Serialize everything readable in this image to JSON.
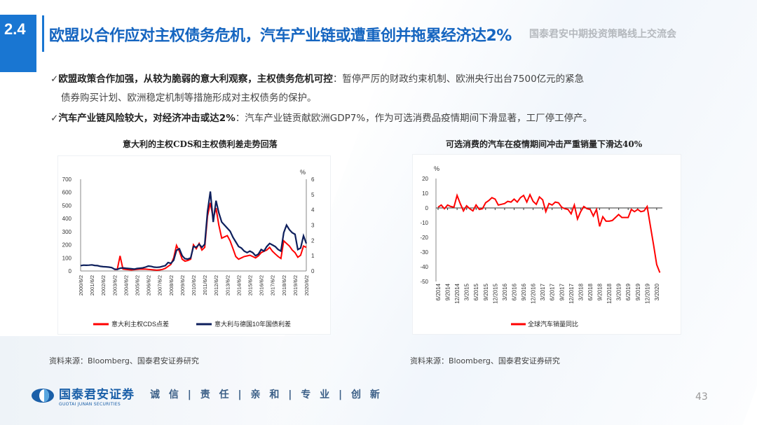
{
  "header": {
    "section": "2.4",
    "title": "欧盟以合作应对主权债务危机，汽车产业链或遭重创并拖累经济达2%",
    "event": "国泰君安中期投资策略线上交流会"
  },
  "bullets": [
    {
      "bold": "欧盟政策合作加强，从较为脆弱的意大利观察，主权债务危机可控",
      "text": "：暂停严厉的财政约束机制、欧洲央行出台7500亿元的紧急",
      "text2": "债券购买计划、欧洲稳定机制等措施形成对主权债务的保护。"
    },
    {
      "bold": "汽车产业链风险较大，对经济冲击或达2%",
      "text": "：汽车产业链贡献欧洲GDP7%，作为可选消费品疫情期间下滑显著，工厂停工停产。"
    }
  ],
  "footer": {
    "logo_cn": "国泰君安证券",
    "logo_en": "GUOTAI JUNAN SECURITIES",
    "motto": "诚 信 | 责 任 | 亲 和 | 专 业 | 创 新",
    "page": "43",
    "brand_color": "#1a5fa8"
  },
  "chart_data": [
    {
      "type": "line",
      "title": "意大利的主权CDS和主权债利差走势回落",
      "source": "资料来源：Bloomberg、国泰君安证券研究",
      "xtick_labels": [
        "2000/6/2",
        "2001/6/2",
        "2002/6/2",
        "2003/6/2",
        "2004/6/2",
        "2005/6/2",
        "2006/6/2",
        "2007/6/2",
        "2008/6/2",
        "2009/6/2",
        "2010/6/2",
        "2011/6/2",
        "2012/6/2",
        "2013/6/2",
        "2014/6/2",
        "2015/6/2",
        "2016/6/2",
        "2017/6/2",
        "2018/6/2",
        "2019/6/2",
        "2020/6/2"
      ],
      "x": [
        "2000-06",
        "2000-09",
        "2000-12",
        "2001-03",
        "2001-06",
        "2001-09",
        "2001-12",
        "2002-03",
        "2002-06",
        "2002-09",
        "2002-12",
        "2003-03",
        "2003-06",
        "2003-09",
        "2003-12",
        "2004-03",
        "2004-06",
        "2004-09",
        "2004-12",
        "2005-03",
        "2005-06",
        "2005-09",
        "2005-12",
        "2006-03",
        "2006-06",
        "2006-09",
        "2006-12",
        "2007-03",
        "2007-06",
        "2007-09",
        "2007-12",
        "2008-03",
        "2008-06",
        "2008-09",
        "2008-12",
        "2009-03",
        "2009-06",
        "2009-09",
        "2009-12",
        "2010-03",
        "2010-06",
        "2010-09",
        "2010-12",
        "2011-03",
        "2011-06",
        "2011-09",
        "2011-12",
        "2012-03",
        "2012-06",
        "2012-09",
        "2012-12",
        "2013-03",
        "2013-06",
        "2013-09",
        "2013-12",
        "2014-03",
        "2014-06",
        "2014-09",
        "2014-12",
        "2015-03",
        "2015-06",
        "2015-09",
        "2015-12",
        "2016-03",
        "2016-06",
        "2016-09",
        "2016-12",
        "2017-03",
        "2017-06",
        "2017-09",
        "2017-12",
        "2018-03",
        "2018-06",
        "2018-09",
        "2018-12",
        "2019-03",
        "2019-06",
        "2019-09",
        "2019-12",
        "2020-03",
        "2020-06"
      ],
      "yleft": {
        "ticks": [
          "0",
          "100",
          "200",
          "300",
          "400",
          "500",
          "600",
          "700"
        ],
        "range": [
          0,
          700
        ]
      },
      "yright": {
        "ticks": [
          "0",
          "1",
          "2",
          "3",
          "4",
          "5",
          "6"
        ],
        "range": [
          0,
          6
        ],
        "unit": "%"
      },
      "series": [
        {
          "name": "意大利主权CDS点差",
          "axis": "left",
          "color": "#ff0000",
          "values": [
            null,
            null,
            null,
            null,
            null,
            null,
            null,
            null,
            null,
            null,
            null,
            null,
            10,
            12,
            115,
            15,
            12,
            10,
            8,
            10,
            12,
            14,
            15,
            14,
            12,
            10,
            8,
            6,
            8,
            12,
            20,
            35,
            50,
            100,
            195,
            150,
            90,
            75,
            80,
            90,
            200,
            170,
            210,
            160,
            180,
            420,
            520,
            400,
            480,
            350,
            250,
            260,
            270,
            230,
            170,
            110,
            90,
            100,
            110,
            115,
            120,
            110,
            100,
            115,
            140,
            150,
            160,
            180,
            150,
            130,
            110,
            95,
            230,
            210,
            190,
            160,
            140,
            105,
            120,
            190,
            180
          ]
        },
        {
          "name": "意大利与德国10年国债利差",
          "axis": "right",
          "color": "#0d1f5c",
          "values": [
            0.35,
            0.38,
            0.37,
            0.38,
            0.4,
            0.36,
            0.35,
            0.3,
            0.28,
            0.27,
            0.25,
            0.22,
            0.12,
            0.1,
            0.18,
            0.2,
            0.18,
            0.16,
            0.14,
            0.12,
            0.16,
            0.18,
            0.2,
            0.25,
            0.32,
            0.3,
            0.25,
            0.24,
            0.25,
            0.3,
            0.35,
            0.55,
            0.5,
            0.7,
            1.35,
            1.45,
            1.0,
            0.8,
            0.78,
            0.85,
            1.6,
            1.55,
            1.75,
            1.55,
            1.75,
            3.9,
            5.2,
            3.2,
            4.6,
            3.8,
            3.2,
            3.0,
            2.8,
            2.6,
            2.2,
            1.9,
            1.6,
            1.5,
            1.3,
            1.2,
            1.3,
            1.2,
            1.0,
            1.1,
            1.4,
            1.3,
            1.6,
            1.8,
            1.7,
            1.6,
            1.4,
            1.3,
            2.5,
            3.0,
            2.7,
            2.5,
            2.4,
            1.4,
            1.5,
            2.3,
            1.8
          ]
        }
      ]
    },
    {
      "type": "line",
      "title": "可选消费的汽车在疫情期间冲击严重销量下滑达40%",
      "source": "资料来源：Bloomberg、国泰君安证券研究",
      "ylabel": "%",
      "ylim": [
        -50,
        20
      ],
      "yticks": [
        "20",
        "10",
        "0",
        "-10",
        "-20",
        "-30",
        "-40",
        "-50"
      ],
      "xtick_labels": [
        "6/2014",
        "9/2014",
        "12/2014",
        "3/2015",
        "6/2015",
        "9/2015",
        "12/2015",
        "3/2016",
        "6/2016",
        "9/2016",
        "12/2016",
        "3/2017",
        "6/2017",
        "9/2017",
        "12/2017",
        "3/2018",
        "6/2018",
        "9/2018",
        "12/2018",
        "3/2019",
        "6/2019",
        "9/2019",
        "12/2019",
        "3/2020"
      ],
      "x_start": "2014-06",
      "x_end": "2020-04",
      "x_step": "month",
      "series": [
        {
          "name": "全球汽车销量同比",
          "color": "#ff0000",
          "values": [
            0.5,
            2,
            -0.5,
            2,
            1,
            0.5,
            8.5,
            3,
            -2,
            1.5,
            -0.5,
            -2,
            2,
            -1,
            -0.5,
            3.5,
            5,
            7,
            6,
            2,
            2.5,
            3,
            4.5,
            4,
            6,
            4,
            7,
            8.5,
            4,
            9,
            4.5,
            2.5,
            7.5,
            5.5,
            -2.5,
            3,
            2,
            4,
            3.5,
            0.5,
            -0.5,
            -1,
            -4,
            2,
            -7.5,
            -2.5,
            1,
            -0.5,
            -1,
            -5.5,
            -1,
            -12.5,
            -6,
            -9,
            -9,
            -8.5,
            -6.5,
            -4.5,
            -6.5,
            -6.5,
            -6.5,
            -1,
            -2.5,
            -1,
            -2.5,
            -2,
            1,
            -12,
            -25,
            -38.5,
            -44
          ]
        }
      ]
    }
  ]
}
